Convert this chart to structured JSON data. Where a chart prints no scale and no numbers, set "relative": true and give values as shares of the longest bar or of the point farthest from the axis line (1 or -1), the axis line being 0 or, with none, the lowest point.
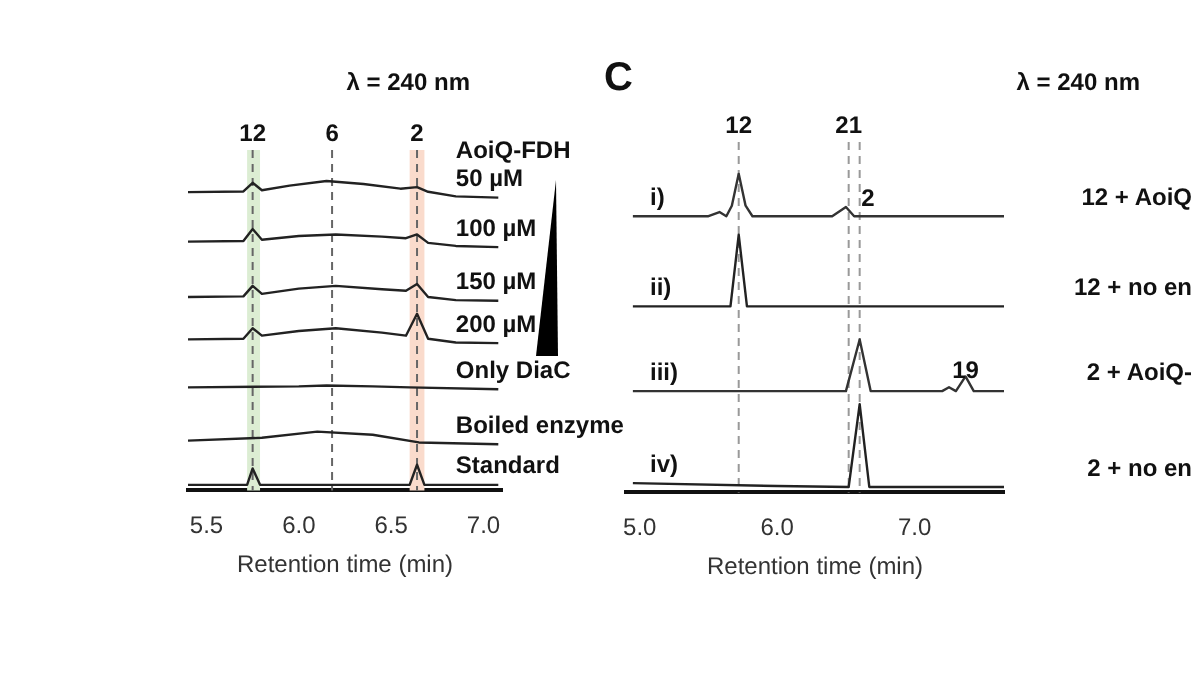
{
  "chart_data": [
    {
      "type": "line",
      "relative": true,
      "title": "λ = 240 nm",
      "xlabel": "Retention time (min)",
      "legend_title": "AoiQ-FDH",
      "xlim": [
        5.4,
        7.1
      ],
      "xticks": [
        5.5,
        {
          "value": 6,
          "label": "6.0"
        },
        6.5,
        {
          "value": 7,
          "label": "7.0"
        }
      ],
      "ref_lines": [
        {
          "axis": "x",
          "value": 5.75,
          "line_style": "dashed",
          "color": "#666666"
        },
        {
          "axis": "x",
          "value": 6.18,
          "line_style": "dashed",
          "color": "#666666"
        },
        {
          "axis": "x",
          "value": 6.64,
          "line_style": "dashed",
          "color": "#666666"
        }
      ],
      "annotations": [
        "12",
        "6",
        "2"
      ],
      "bands": [
        {
          "axis": "x",
          "from": 5.72,
          "to": 5.79,
          "color": "#dcedd3"
        },
        {
          "axis": "x",
          "from": 6.6,
          "to": 6.68,
          "color": "#fadbcc"
        }
      ],
      "series": [
        {
          "name": "50 µM",
          "color": "#222222",
          "x": [
            5.4,
            5.7,
            5.75,
            5.8,
            5.95,
            6.15,
            6.35,
            6.55,
            6.64,
            6.7,
            6.85,
            7.08
          ],
          "values": [
            0.964,
            0.966,
            0.994,
            0.97,
            0.985,
            1.0,
            0.99,
            0.975,
            0.98,
            0.965,
            0.95,
            0.946
          ]
        },
        {
          "name": "100 µM",
          "color": "#222222",
          "x": [
            5.4,
            5.7,
            5.75,
            5.8,
            6.0,
            6.2,
            6.45,
            6.58,
            6.64,
            6.7,
            6.85,
            7.08
          ],
          "values": [
            0.804,
            0.806,
            0.845,
            0.81,
            0.822,
            0.827,
            0.82,
            0.815,
            0.827,
            0.8,
            0.79,
            0.786
          ]
        },
        {
          "name": "150 µM",
          "color": "#222222",
          "x": [
            5.4,
            5.7,
            5.75,
            5.8,
            6.0,
            6.2,
            6.45,
            6.58,
            6.64,
            6.7,
            6.85,
            7.08
          ],
          "values": [
            0.625,
            0.627,
            0.661,
            0.635,
            0.652,
            0.661,
            0.65,
            0.645,
            0.667,
            0.625,
            0.615,
            0.613
          ]
        },
        {
          "name": "200 µM",
          "color": "#222222",
          "x": [
            5.4,
            5.7,
            5.75,
            5.8,
            6.0,
            6.2,
            6.45,
            6.58,
            6.64,
            6.7,
            6.85,
            7.08
          ],
          "values": [
            0.488,
            0.49,
            0.524,
            0.5,
            0.515,
            0.524,
            0.51,
            0.5,
            0.571,
            0.49,
            0.478,
            0.476
          ]
        },
        {
          "name": "Only DiaC",
          "color": "#222222",
          "x": [
            5.4,
            6.0,
            6.15,
            6.4,
            6.6,
            7.08
          ],
          "values": [
            0.333,
            0.336,
            0.339,
            0.336,
            0.333,
            0.327
          ]
        },
        {
          "name": "Boiled enzyme",
          "color": "#222222",
          "x": [
            5.4,
            5.8,
            6.1,
            6.4,
            6.65,
            7.08
          ],
          "values": [
            0.161,
            0.17,
            0.19,
            0.18,
            0.155,
            0.149
          ]
        },
        {
          "name": "Standard",
          "color": "#222222",
          "x": [
            5.4,
            5.72,
            5.75,
            5.79,
            6.6,
            6.64,
            6.68,
            7.08
          ],
          "values": [
            0.018,
            0.018,
            0.071,
            0.018,
            0.018,
            0.083,
            0.018,
            0.018
          ]
        }
      ]
    },
    {
      "type": "line",
      "relative": true,
      "title": "C",
      "subtitle": "λ = 240 nm",
      "xlabel": "Retention time (min)",
      "xlim": [
        4.9,
        7.65
      ],
      "xticks": [
        {
          "value": 5,
          "label": "5.0"
        },
        {
          "value": 6,
          "label": "6.0"
        },
        {
          "value": 7,
          "label": "7.0"
        }
      ],
      "ref_lines": [
        {
          "axis": "x",
          "value": 5.72,
          "line_style": "dashed",
          "color": "#999999"
        },
        {
          "axis": "x",
          "value": 6.52,
          "line_style": "dashed",
          "color": "#999999"
        },
        {
          "axis": "x",
          "value": 6.6,
          "line_style": "dashed",
          "color": "#999999"
        }
      ],
      "annotations": [
        "i)",
        "ii)",
        "iii)",
        "iv)",
        "12",
        "21",
        {
          "text": "2",
          "x": 6.66,
          "y": 0.92
        },
        {
          "text": "19",
          "x": 7.37,
          "y": 0.38
        }
      ],
      "series": [
        {
          "name": "12 + AoiQ",
          "color": "#333333",
          "x": [
            4.95,
            5.5,
            5.58,
            5.63,
            5.67,
            5.72,
            5.77,
            5.82,
            6.4,
            6.5,
            6.56,
            7.65
          ],
          "values": [
            0.867,
            0.867,
            0.88,
            0.867,
            0.9,
            1.0,
            0.9,
            0.867,
            0.867,
            0.896,
            0.867,
            0.867
          ]
        },
        {
          "name": "12 + no en",
          "color": "#222222",
          "x": [
            4.95,
            5.66,
            5.72,
            5.78,
            7.65
          ],
          "values": [
            0.584,
            0.584,
            0.809,
            0.584,
            0.584
          ]
        },
        {
          "name": "2 + AoiQ-",
          "color": "#333333",
          "x": [
            4.95,
            6.5,
            6.6,
            6.68,
            7.2,
            7.25,
            7.3,
            7.37,
            7.43,
            7.65
          ],
          "values": [
            0.318,
            0.318,
            0.48,
            0.318,
            0.318,
            0.33,
            0.318,
            0.364,
            0.318,
            0.318
          ]
        },
        {
          "name": "2 + no en",
          "color": "#222222",
          "x": [
            4.95,
            6.0,
            6.52,
            6.6,
            6.67,
            7.65
          ],
          "values": [
            0.029,
            0.02,
            0.017,
            0.277,
            0.017,
            0.017
          ]
        }
      ]
    }
  ]
}
